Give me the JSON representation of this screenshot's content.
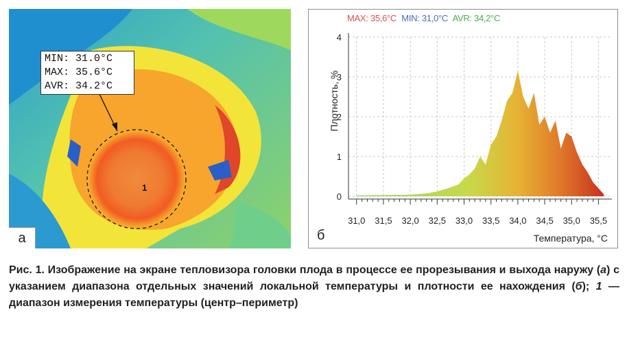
{
  "panel_a": {
    "letter": "a",
    "readout": {
      "min": "MIN: 31.0°C",
      "max": "MAX: 35.6°C",
      "avr": "AVR: 34.2°C"
    },
    "region_label": "1"
  },
  "panel_b": {
    "letter": "б",
    "stats": {
      "max": "MAX: 35,6°C",
      "min": "MIN: 31,0°C",
      "avr": "AVR: 34,2°C"
    },
    "colors": {
      "max": "#d9534f",
      "min": "#4a6fb0",
      "avr": "#4cae4c"
    }
  },
  "chart_data": {
    "type": "area",
    "xlabel": "Температура, °C",
    "ylabel": "Плотность, %",
    "xlim": [
      30.85,
      35.75
    ],
    "ylim": [
      0,
      4
    ],
    "x_ticks": [
      "31,0",
      "31,5",
      "32,0",
      "32,5",
      "33,0",
      "33,5",
      "34,0",
      "34,5",
      "35,0",
      "35,5"
    ],
    "y_ticks": [
      "0",
      "1",
      "2",
      "3",
      "4"
    ],
    "grid": true,
    "series": [
      {
        "x": [
          31.0,
          31.5,
          32.0,
          32.3,
          32.5,
          32.7,
          32.9,
          33.0,
          33.1,
          33.2,
          33.3,
          33.4,
          33.5,
          33.6,
          33.7,
          33.8,
          33.9,
          34.0,
          34.1,
          34.2,
          34.3,
          34.4,
          34.5,
          34.6,
          34.7,
          34.8,
          34.9,
          35.0,
          35.1,
          35.2,
          35.3,
          35.4,
          35.5,
          35.6
        ],
        "y": [
          0.02,
          0.03,
          0.04,
          0.07,
          0.12,
          0.2,
          0.3,
          0.45,
          0.55,
          0.7,
          1.0,
          0.8,
          1.3,
          1.5,
          1.9,
          2.4,
          2.6,
          3.15,
          2.5,
          2.2,
          2.6,
          1.8,
          2.0,
          1.6,
          1.9,
          1.2,
          1.6,
          1.5,
          1.1,
          0.8,
          0.6,
          0.35,
          0.2,
          0.05
        ]
      }
    ]
  },
  "caption": {
    "lead": "Рис. 1. Изображение на экране тепловизора головки плода в процессе ее прорезывания и выхода наружу (",
    "a": "а",
    "mid1": ") с указанием диапазона отдельных значений локальной температуры и плотности ее нахождения (",
    "b": "б",
    "mid2": "); ",
    "one": "1",
    "tail": " — диапазон измерения температуры (центр–периметр)"
  }
}
